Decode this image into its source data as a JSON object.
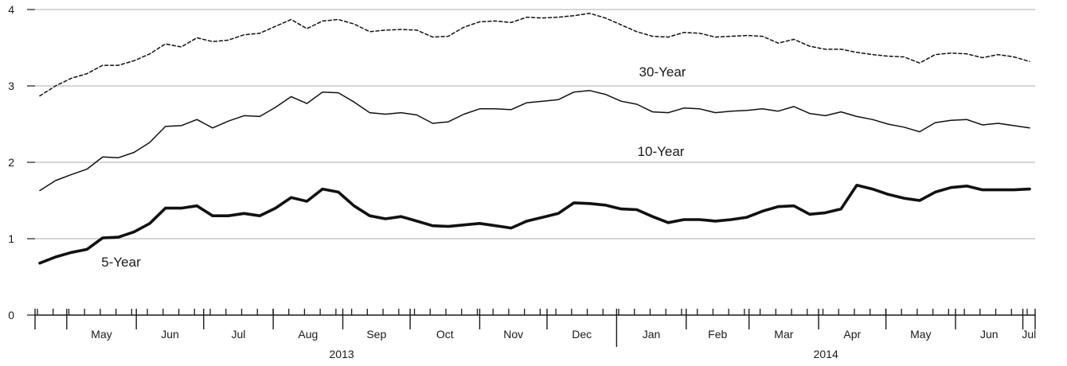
{
  "chart_data": {
    "type": "line",
    "title": "",
    "xlabel": "",
    "ylabel": "",
    "ylim": [
      0,
      4
    ],
    "yticks": [
      "0",
      "1",
      "2",
      "3",
      "4"
    ],
    "grid": "horizontal",
    "x_start": "2013-04-19",
    "months": [
      {
        "label": "May",
        "year": "2013"
      },
      {
        "label": "Jun",
        "year": "2013"
      },
      {
        "label": "Jul",
        "year": "2013"
      },
      {
        "label": "Aug",
        "year": "2013"
      },
      {
        "label": "Sep",
        "year": "2013"
      },
      {
        "label": "Oct",
        "year": "2013"
      },
      {
        "label": "Nov",
        "year": "2013"
      },
      {
        "label": "Dec",
        "year": "2013"
      },
      {
        "label": "Jan",
        "year": "2014"
      },
      {
        "label": "Feb",
        "year": "2014"
      },
      {
        "label": "Mar",
        "year": "2014"
      },
      {
        "label": "Apr",
        "year": "2014"
      },
      {
        "label": "May",
        "year": "2014"
      },
      {
        "label": "Jun",
        "year": "2014"
      },
      {
        "label": "Jul",
        "year": "2014"
      }
    ],
    "years": [
      "2013",
      "2014"
    ],
    "series": [
      {
        "name": "30-Year",
        "style": "dashed",
        "values": [
          2.87,
          3.0,
          3.1,
          3.16,
          3.27,
          3.27,
          3.33,
          3.42,
          3.55,
          3.51,
          3.63,
          3.58,
          3.6,
          3.67,
          3.69,
          3.78,
          3.87,
          3.75,
          3.85,
          3.87,
          3.81,
          3.71,
          3.73,
          3.74,
          3.73,
          3.64,
          3.65,
          3.77,
          3.84,
          3.85,
          3.83,
          3.9,
          3.89,
          3.9,
          3.92,
          3.95,
          3.89,
          3.8,
          3.71,
          3.65,
          3.64,
          3.7,
          3.69,
          3.64,
          3.65,
          3.66,
          3.65,
          3.56,
          3.61,
          3.52,
          3.48,
          3.48,
          3.44,
          3.41,
          3.39,
          3.38,
          3.3,
          3.41,
          3.43,
          3.42,
          3.37,
          3.41,
          3.38,
          3.32
        ]
      },
      {
        "name": "10-Year",
        "style": "solid",
        "values": [
          1.63,
          1.76,
          1.84,
          1.91,
          2.07,
          2.06,
          2.13,
          2.26,
          2.47,
          2.48,
          2.56,
          2.45,
          2.54,
          2.61,
          2.6,
          2.72,
          2.86,
          2.77,
          2.92,
          2.91,
          2.79,
          2.65,
          2.63,
          2.65,
          2.62,
          2.51,
          2.53,
          2.63,
          2.7,
          2.7,
          2.69,
          2.78,
          2.8,
          2.82,
          2.92,
          2.94,
          2.89,
          2.8,
          2.76,
          2.66,
          2.65,
          2.71,
          2.7,
          2.65,
          2.67,
          2.68,
          2.7,
          2.67,
          2.73,
          2.64,
          2.61,
          2.66,
          2.6,
          2.56,
          2.5,
          2.46,
          2.4,
          2.52,
          2.55,
          2.56,
          2.49,
          2.51,
          2.48,
          2.45
        ]
      },
      {
        "name": "5-Year",
        "style": "bold",
        "values": [
          0.68,
          0.76,
          0.82,
          0.86,
          1.01,
          1.02,
          1.09,
          1.2,
          1.4,
          1.4,
          1.43,
          1.3,
          1.3,
          1.33,
          1.3,
          1.4,
          1.54,
          1.49,
          1.65,
          1.61,
          1.43,
          1.3,
          1.26,
          1.29,
          1.23,
          1.17,
          1.16,
          1.18,
          1.2,
          1.17,
          1.14,
          1.23,
          1.28,
          1.33,
          1.47,
          1.46,
          1.44,
          1.39,
          1.38,
          1.29,
          1.21,
          1.25,
          1.25,
          1.23,
          1.25,
          1.28,
          1.36,
          1.42,
          1.43,
          1.32,
          1.34,
          1.39,
          1.7,
          1.65,
          1.58,
          1.53,
          1.5,
          1.61,
          1.67,
          1.69,
          1.64,
          1.64,
          1.64,
          1.65
        ]
      }
    ]
  }
}
